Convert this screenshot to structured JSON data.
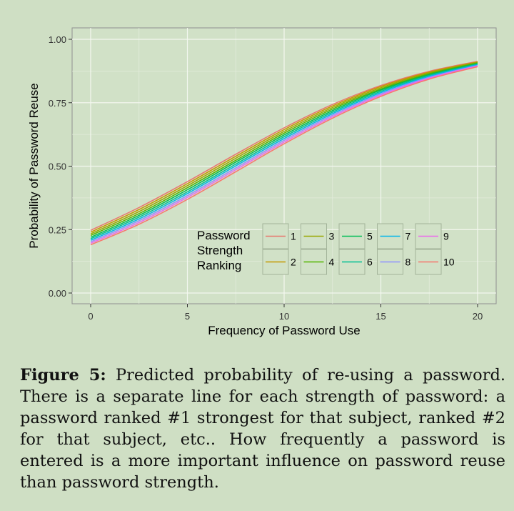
{
  "chart_data": {
    "type": "line",
    "xlabel": "Frequency of Password Use",
    "ylabel": "Probability of Password Reuse",
    "xlim": [
      0,
      20
    ],
    "ylim": [
      0,
      1
    ],
    "x_ticks": [
      "0",
      "5",
      "10",
      "15",
      "20"
    ],
    "y_ticks": [
      "0.00",
      "0.25",
      "0.50",
      "0.75",
      "1.00"
    ],
    "grid": true,
    "legend": {
      "title_lines": [
        "Password",
        "Strength",
        "Ranking"
      ],
      "placement": "bottom-right",
      "rows": 2
    },
    "x": [
      0,
      2.5,
      5,
      7.5,
      10,
      12.5,
      15,
      17.5,
      20
    ],
    "series": [
      {
        "name": "1",
        "color": "#e8766d",
        "values": [
          0.247,
          0.337,
          0.439,
          0.547,
          0.651,
          0.743,
          0.818,
          0.874,
          0.913
        ]
      },
      {
        "name": "2",
        "color": "#c49a00",
        "values": [
          0.24,
          0.329,
          0.431,
          0.539,
          0.644,
          0.737,
          0.814,
          0.871,
          0.911
        ]
      },
      {
        "name": "3",
        "color": "#99a800",
        "values": [
          0.233,
          0.321,
          0.423,
          0.531,
          0.637,
          0.731,
          0.809,
          0.868,
          0.909
        ]
      },
      {
        "name": "4",
        "color": "#53b400",
        "values": [
          0.227,
          0.313,
          0.415,
          0.523,
          0.63,
          0.725,
          0.804,
          0.864,
          0.907
        ]
      },
      {
        "name": "5",
        "color": "#00bc56",
        "values": [
          0.22,
          0.306,
          0.407,
          0.516,
          0.623,
          0.719,
          0.8,
          0.861,
          0.904
        ]
      },
      {
        "name": "6",
        "color": "#00c094",
        "values": [
          0.214,
          0.299,
          0.399,
          0.508,
          0.616,
          0.713,
          0.795,
          0.857,
          0.902
        ]
      },
      {
        "name": "7",
        "color": "#00b6eb",
        "values": [
          0.208,
          0.292,
          0.392,
          0.501,
          0.609,
          0.707,
          0.79,
          0.854,
          0.9
        ]
      },
      {
        "name": "8",
        "color": "#8f91ff",
        "values": [
          0.202,
          0.285,
          0.384,
          0.493,
          0.602,
          0.701,
          0.785,
          0.85,
          0.897
        ]
      },
      {
        "name": "9",
        "color": "#ed68ed",
        "values": [
          0.196,
          0.278,
          0.377,
          0.486,
          0.595,
          0.695,
          0.78,
          0.847,
          0.895
        ]
      },
      {
        "name": "10",
        "color": "#f8766d",
        "values": [
          0.19,
          0.271,
          0.369,
          0.478,
          0.588,
          0.689,
          0.775,
          0.843,
          0.892
        ]
      }
    ]
  },
  "caption": {
    "label": "Figure 5:",
    "text": "Predicted probability of re-using a password. There is a separate line for each strength of password: a password ranked #1 strongest for that subject, ranked #2 for that subject, etc.. How frequently a password is entered is a more important influence on password reuse than password strength."
  }
}
